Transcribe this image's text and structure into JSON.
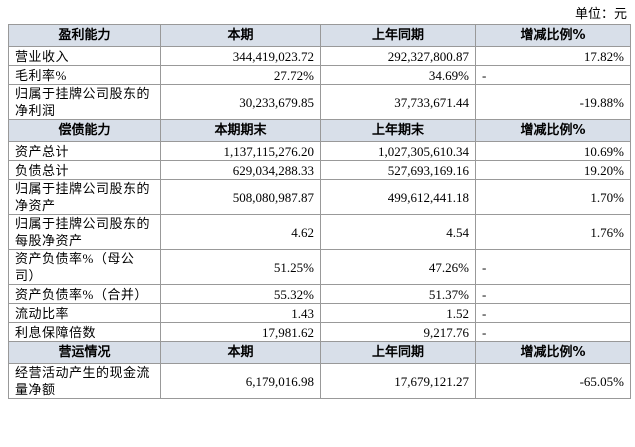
{
  "unit": "单位：元",
  "sections": [
    {
      "header": [
        "盈利能力",
        "本期",
        "上年同期",
        "增减比例%"
      ],
      "rows": [
        [
          "营业收入",
          "344,419,023.72",
          "292,327,800.87",
          "17.82%"
        ],
        [
          "毛利率%",
          "27.72%",
          "34.69%",
          "-"
        ],
        [
          "归属于挂牌公司股东的净利润",
          "30,233,679.85",
          "37,733,671.44",
          "-19.88%"
        ]
      ]
    },
    {
      "header": [
        "偿债能力",
        "本期期末",
        "上年期末",
        "增减比例%"
      ],
      "rows": [
        [
          "资产总计",
          "1,137,115,276.20",
          "1,027,305,610.34",
          "10.69%"
        ],
        [
          "负债总计",
          "629,034,288.33",
          "527,693,169.16",
          "19.20%"
        ],
        [
          "归属于挂牌公司股东的净资产",
          "508,080,987.87",
          "499,612,441.18",
          "1.70%"
        ],
        [
          "归属于挂牌公司股东的每股净资产",
          "4.62",
          "4.54",
          "1.76%"
        ],
        [
          "资产负债率%（母公司）",
          "51.25%",
          "47.26%",
          "-"
        ],
        [
          "资产负债率%（合并）",
          "55.32%",
          "51.37%",
          "-"
        ],
        [
          "流动比率",
          "1.43",
          "1.52",
          "-"
        ],
        [
          "利息保障倍数",
          "17,981.62",
          "9,217.76",
          "-"
        ]
      ]
    },
    {
      "header": [
        "营运情况",
        "本期",
        "上年同期",
        "增减比例%"
      ],
      "rows": [
        [
          "经营活动产生的现金流量净额",
          "6,179,016.98",
          "17,679,121.27",
          "-65.05%"
        ]
      ]
    }
  ]
}
